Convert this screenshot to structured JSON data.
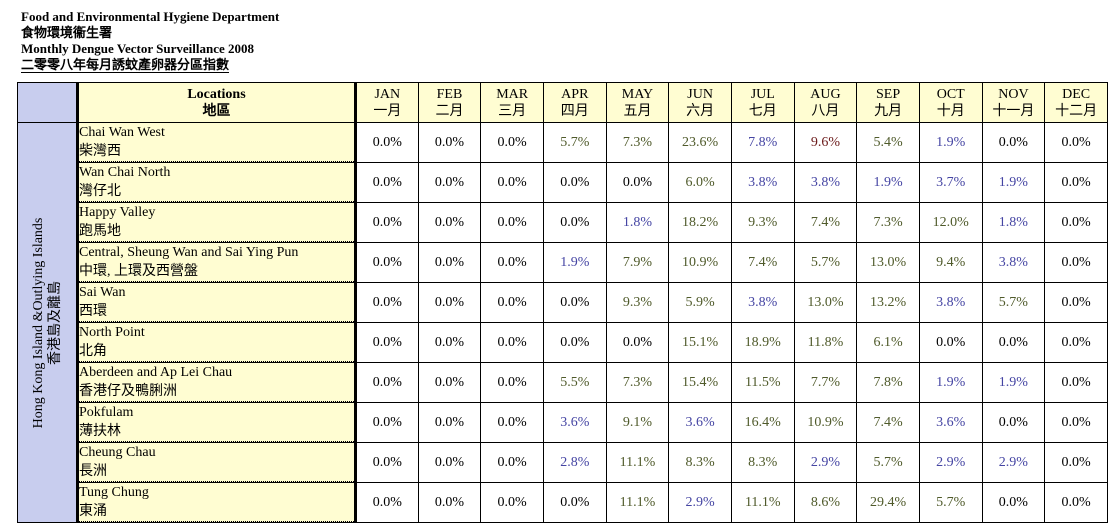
{
  "header": {
    "line1": "Food and Environmental Hygiene Department",
    "line2": "食物環境衞生署",
    "line3": "Monthly Dengue Vector Surveillance 2008",
    "line4": "二零零八年每月誘蚊產卵器分區指數"
  },
  "table": {
    "locations_header_en": "Locations",
    "locations_header_zh": "地區",
    "months": [
      {
        "en": "JAN",
        "zh": "一月"
      },
      {
        "en": "FEB",
        "zh": "二月"
      },
      {
        "en": "MAR",
        "zh": "三月"
      },
      {
        "en": "APR",
        "zh": "四月"
      },
      {
        "en": "MAY",
        "zh": "五月"
      },
      {
        "en": "JUN",
        "zh": "六月"
      },
      {
        "en": "JUL",
        "zh": "七月"
      },
      {
        "en": "AUG",
        "zh": "八月"
      },
      {
        "en": "SEP",
        "zh": "九月"
      },
      {
        "en": "OCT",
        "zh": "十月"
      },
      {
        "en": "NOV",
        "zh": "十一月"
      },
      {
        "en": "DEC",
        "zh": "十二月"
      }
    ],
    "region_en": "Hong Kong Island &Outlying Islands",
    "region_zh": "香港島及離島",
    "value_colors": {
      "black": "#000000",
      "blue": "#4545a3",
      "green": "#4f5a2a",
      "red": "#6b1a1a"
    },
    "rows": [
      {
        "en": "Chai Wan West",
        "zh": "柴灣西",
        "values": [
          "0.0%",
          "0.0%",
          "0.0%",
          "5.7%",
          "7.3%",
          "23.6%",
          "7.8%",
          "9.6%",
          "5.4%",
          "1.9%",
          "0.0%",
          "0.0%"
        ],
        "colors": [
          "blk",
          "blk",
          "blk",
          "grn",
          "grn",
          "grn",
          "blu",
          "red",
          "grn",
          "blu",
          "blk",
          "blk"
        ]
      },
      {
        "en": "Wan Chai North",
        "zh": "灣仔北",
        "values": [
          "0.0%",
          "0.0%",
          "0.0%",
          "0.0%",
          "0.0%",
          "6.0%",
          "3.8%",
          "3.8%",
          "1.9%",
          "3.7%",
          "1.9%",
          "0.0%"
        ],
        "colors": [
          "blk",
          "blk",
          "blk",
          "blk",
          "blk",
          "grn",
          "blu",
          "blu",
          "blu",
          "blu",
          "blu",
          "blk"
        ]
      },
      {
        "en": "Happy Valley",
        "zh": "跑馬地",
        "values": [
          "0.0%",
          "0.0%",
          "0.0%",
          "0.0%",
          "1.8%",
          "18.2%",
          "9.3%",
          "7.4%",
          "7.3%",
          "12.0%",
          "1.8%",
          "0.0%"
        ],
        "colors": [
          "blk",
          "blk",
          "blk",
          "blk",
          "blu",
          "grn",
          "grn",
          "grn",
          "grn",
          "grn",
          "blu",
          "blk"
        ]
      },
      {
        "en": "Central, Sheung Wan and Sai Ying Pun",
        "zh": "中環, 上環及西營盤",
        "values": [
          "0.0%",
          "0.0%",
          "0.0%",
          "1.9%",
          "7.9%",
          "10.9%",
          "7.4%",
          "5.7%",
          "13.0%",
          "9.4%",
          "3.8%",
          "0.0%"
        ],
        "colors": [
          "blk",
          "blk",
          "blk",
          "blu",
          "grn",
          "grn",
          "grn",
          "grn",
          "grn",
          "grn",
          "blu",
          "blk"
        ]
      },
      {
        "en": "Sai Wan",
        "zh": "西環",
        "values": [
          "0.0%",
          "0.0%",
          "0.0%",
          "0.0%",
          "9.3%",
          "5.9%",
          "3.8%",
          "13.0%",
          "13.2%",
          "3.8%",
          "5.7%",
          "0.0%"
        ],
        "colors": [
          "blk",
          "blk",
          "blk",
          "blk",
          "grn",
          "grn",
          "blu",
          "grn",
          "grn",
          "blu",
          "grn",
          "blk"
        ]
      },
      {
        "en": "North Point",
        "zh": "北角",
        "values": [
          "0.0%",
          "0.0%",
          "0.0%",
          "0.0%",
          "0.0%",
          "15.1%",
          "18.9%",
          "11.8%",
          "6.1%",
          "0.0%",
          "0.0%",
          "0.0%"
        ],
        "colors": [
          "blk",
          "blk",
          "blk",
          "blk",
          "blk",
          "grn",
          "grn",
          "grn",
          "grn",
          "blk",
          "blk",
          "blk"
        ]
      },
      {
        "en": "Aberdeen and Ap Lei Chau",
        "zh": "香港仔及鴨脷洲",
        "values": [
          "0.0%",
          "0.0%",
          "0.0%",
          "5.5%",
          "7.3%",
          "15.4%",
          "11.5%",
          "7.7%",
          "7.8%",
          "1.9%",
          "1.9%",
          "0.0%"
        ],
        "colors": [
          "blk",
          "blk",
          "blk",
          "grn",
          "grn",
          "grn",
          "grn",
          "grn",
          "grn",
          "blu",
          "blu",
          "blk"
        ]
      },
      {
        "en": "Pokfulam",
        "zh": "薄扶林",
        "values": [
          "0.0%",
          "0.0%",
          "0.0%",
          "3.6%",
          "9.1%",
          "3.6%",
          "16.4%",
          "10.9%",
          "7.4%",
          "3.6%",
          "0.0%",
          "0.0%"
        ],
        "colors": [
          "blk",
          "blk",
          "blk",
          "blu",
          "grn",
          "blu",
          "grn",
          "grn",
          "grn",
          "blu",
          "blk",
          "blk"
        ]
      },
      {
        "en": "Cheung Chau",
        "zh": "長洲",
        "values": [
          "0.0%",
          "0.0%",
          "0.0%",
          "2.8%",
          "11.1%",
          "8.3%",
          "8.3%",
          "2.9%",
          "5.7%",
          "2.9%",
          "2.9%",
          "0.0%"
        ],
        "colors": [
          "blk",
          "blk",
          "blk",
          "blu",
          "grn",
          "grn",
          "grn",
          "blu",
          "grn",
          "blu",
          "blu",
          "blk"
        ]
      },
      {
        "en": "Tung Chung",
        "zh": "東涌",
        "values": [
          "0.0%",
          "0.0%",
          "0.0%",
          "0.0%",
          "11.1%",
          "2.9%",
          "11.1%",
          "8.6%",
          "29.4%",
          "5.7%",
          "0.0%",
          "0.0%"
        ],
        "colors": [
          "blk",
          "blk",
          "blk",
          "blk",
          "grn",
          "blu",
          "grn",
          "grn",
          "grn",
          "grn",
          "blk",
          "blk"
        ]
      }
    ]
  }
}
